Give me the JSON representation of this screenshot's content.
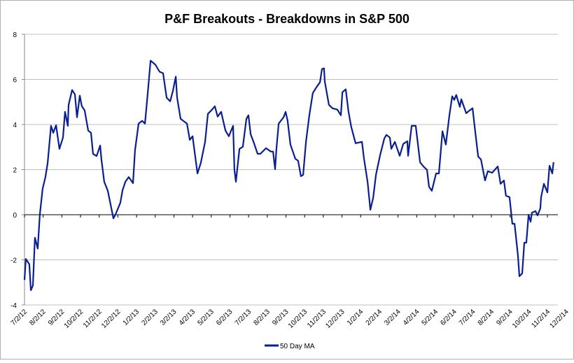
{
  "chart_data": {
    "type": "line",
    "title": "P&F Breakouts - Breakdowns in S&P 500",
    "xlabel": "",
    "ylabel": "",
    "ylim": [
      -4,
      8
    ],
    "yticks": [
      "-4",
      "-2",
      "0",
      "2",
      "4",
      "6",
      "8"
    ],
    "ytick_values": [
      -4,
      -2,
      0,
      2,
      4,
      6,
      8
    ],
    "x_unit": "months since 7/2/12",
    "xticks": [
      "7/2/12",
      "8/2/12",
      "9/2/12",
      "10/2/12",
      "11/2/12",
      "12/2/12",
      "1/2/13",
      "2/2/13",
      "3/2/13",
      "4/2/13",
      "5/2/13",
      "6/2/13",
      "7/2/13",
      "8/2/13",
      "9/2/13",
      "10/2/13",
      "11/2/13",
      "12/2/13",
      "1/2/14",
      "2/2/14",
      "3/2/14",
      "4/2/14",
      "5/2/14",
      "6/2/14",
      "7/2/14",
      "8/2/14",
      "9/2/14",
      "10/2/14",
      "11/2/14",
      "12/2/14"
    ],
    "grid": true,
    "legend_position": "bottom",
    "series": [
      {
        "name": "50 Day MA",
        "color": "#0a1f8f",
        "points": [
          [
            0,
            -2.89
          ],
          [
            0.07,
            -1.96
          ],
          [
            0.26,
            -2.2
          ],
          [
            0.34,
            -3.35
          ],
          [
            0.45,
            -3.14
          ],
          [
            0.56,
            -1.02
          ],
          [
            0.71,
            -1.5
          ],
          [
            0.82,
            0
          ],
          [
            0.97,
            1.15
          ],
          [
            1.12,
            1.67
          ],
          [
            1.24,
            2.3
          ],
          [
            1.42,
            3.94
          ],
          [
            1.54,
            3.63
          ],
          [
            1.69,
            3.97
          ],
          [
            1.87,
            2.92
          ],
          [
            2.06,
            3.42
          ],
          [
            2.17,
            4.56
          ],
          [
            2.32,
            3.94
          ],
          [
            2.36,
            4.87
          ],
          [
            2.55,
            5.53
          ],
          [
            2.7,
            5.34
          ],
          [
            2.81,
            4.32
          ],
          [
            2.96,
            5.28
          ],
          [
            3.07,
            4.81
          ],
          [
            3.22,
            4.63
          ],
          [
            3.41,
            3.73
          ],
          [
            3.56,
            3.63
          ],
          [
            3.67,
            2.7
          ],
          [
            3.86,
            2.6
          ],
          [
            4.05,
            3.07
          ],
          [
            4.12,
            2.45
          ],
          [
            4.27,
            1.46
          ],
          [
            4.46,
            1.06
          ],
          [
            4.57,
            0.62
          ],
          [
            4.76,
            -0.16
          ],
          [
            4.87,
            0
          ],
          [
            5.13,
            0.53
          ],
          [
            5.25,
            1.09
          ],
          [
            5.4,
            1.46
          ],
          [
            5.58,
            1.67
          ],
          [
            5.81,
            1.4
          ],
          [
            5.92,
            2.86
          ],
          [
            6.11,
            4.04
          ],
          [
            6.3,
            4.16
          ],
          [
            6.45,
            4.04
          ],
          [
            6.6,
            5.4
          ],
          [
            6.75,
            6.83
          ],
          [
            7.01,
            6.65
          ],
          [
            7.23,
            6.34
          ],
          [
            7.42,
            6.27
          ],
          [
            7.61,
            5.19
          ],
          [
            7.8,
            5.03
          ],
          [
            7.95,
            5.5
          ],
          [
            8.1,
            6.12
          ],
          [
            8.17,
            5.19
          ],
          [
            8.36,
            4.25
          ],
          [
            8.7,
            4.04
          ],
          [
            8.85,
            3.32
          ],
          [
            9.0,
            3.48
          ],
          [
            9.26,
            1.83
          ],
          [
            9.44,
            2.3
          ],
          [
            9.67,
            3.23
          ],
          [
            9.82,
            4.47
          ],
          [
            10.04,
            4.66
          ],
          [
            10.19,
            4.81
          ],
          [
            10.34,
            4.35
          ],
          [
            10.53,
            4.56
          ],
          [
            10.76,
            3.73
          ],
          [
            10.94,
            3.48
          ],
          [
            11.17,
            3.94
          ],
          [
            11.24,
            1.99
          ],
          [
            11.32,
            1.46
          ],
          [
            11.51,
            2.92
          ],
          [
            11.69,
            3.01
          ],
          [
            11.88,
            4.25
          ],
          [
            11.99,
            4.41
          ],
          [
            12.11,
            3.57
          ],
          [
            12.29,
            3.17
          ],
          [
            12.48,
            2.7
          ],
          [
            12.63,
            2.7
          ],
          [
            12.93,
            2.95
          ],
          [
            13.19,
            2.8
          ],
          [
            13.31,
            2.8
          ],
          [
            13.42,
            2.02
          ],
          [
            13.49,
            2.92
          ],
          [
            13.61,
            4.04
          ],
          [
            13.87,
            4.32
          ],
          [
            13.98,
            4.56
          ],
          [
            14.09,
            4.16
          ],
          [
            14.24,
            3.11
          ],
          [
            14.5,
            2.48
          ],
          [
            14.65,
            2.39
          ],
          [
            14.8,
            1.71
          ],
          [
            14.92,
            1.77
          ],
          [
            15.07,
            3.23
          ],
          [
            15.25,
            4.41
          ],
          [
            15.44,
            5.4
          ],
          [
            15.63,
            5.65
          ],
          [
            15.82,
            5.87
          ],
          [
            15.93,
            6.46
          ],
          [
            16.04,
            6.49
          ],
          [
            16.08,
            5.9
          ],
          [
            16.3,
            4.87
          ],
          [
            16.49,
            4.72
          ],
          [
            16.75,
            4.66
          ],
          [
            16.94,
            4.41
          ],
          [
            17.02,
            5.43
          ],
          [
            17.2,
            5.56
          ],
          [
            17.35,
            4.56
          ],
          [
            17.5,
            3.88
          ],
          [
            17.73,
            3.17
          ],
          [
            18.07,
            3.23
          ],
          [
            18.18,
            2.48
          ],
          [
            18.37,
            1.46
          ],
          [
            18.52,
            0.22
          ],
          [
            18.67,
            0.75
          ],
          [
            18.82,
            1.77
          ],
          [
            19.04,
            2.64
          ],
          [
            19.27,
            3.39
          ],
          [
            19.38,
            3.54
          ],
          [
            19.56,
            3.42
          ],
          [
            19.64,
            2.92
          ],
          [
            19.83,
            3.23
          ],
          [
            20.09,
            2.61
          ],
          [
            20.28,
            3.14
          ],
          [
            20.5,
            3.26
          ],
          [
            20.54,
            2.61
          ],
          [
            20.73,
            3.94
          ],
          [
            20.95,
            3.94
          ],
          [
            21.18,
            2.33
          ],
          [
            21.36,
            2.14
          ],
          [
            21.55,
            1.99
          ],
          [
            21.66,
            1.24
          ],
          [
            21.81,
            1.06
          ],
          [
            22.04,
            1.83
          ],
          [
            22.19,
            1.83
          ],
          [
            22.38,
            3.7
          ],
          [
            22.56,
            3.11
          ],
          [
            22.75,
            4.41
          ],
          [
            22.9,
            5.25
          ],
          [
            23.01,
            5.09
          ],
          [
            23.12,
            5.31
          ],
          [
            23.31,
            4.78
          ],
          [
            23.39,
            5.12
          ],
          [
            23.65,
            4.5
          ],
          [
            23.84,
            4.63
          ],
          [
            23.99,
            4.72
          ],
          [
            24.14,
            3.63
          ],
          [
            24.29,
            2.58
          ],
          [
            24.44,
            2.45
          ],
          [
            24.66,
            1.52
          ],
          [
            24.81,
            1.93
          ],
          [
            25.04,
            1.86
          ],
          [
            25.34,
            2.14
          ],
          [
            25.49,
            1.37
          ],
          [
            25.67,
            1.52
          ],
          [
            25.78,
            0.84
          ],
          [
            25.97,
            0.78
          ],
          [
            26.12,
            -0.4
          ],
          [
            26.24,
            -0.4
          ],
          [
            26.42,
            -1.8
          ],
          [
            26.5,
            -2.73
          ],
          [
            26.65,
            -2.6
          ],
          [
            26.76,
            -1.24
          ],
          [
            26.87,
            -1.24
          ],
          [
            26.99,
            0
          ],
          [
            27.1,
            -0.31
          ],
          [
            27.17,
            0.09
          ],
          [
            27.36,
            0.16
          ],
          [
            27.47,
            -0.03
          ],
          [
            27.62,
            0.28
          ],
          [
            27.66,
            0.78
          ],
          [
            27.81,
            1.37
          ],
          [
            28.0,
            0.99
          ],
          [
            28.11,
            2.17
          ],
          [
            28.26,
            1.83
          ],
          [
            28.33,
            2.33
          ]
        ]
      }
    ]
  }
}
